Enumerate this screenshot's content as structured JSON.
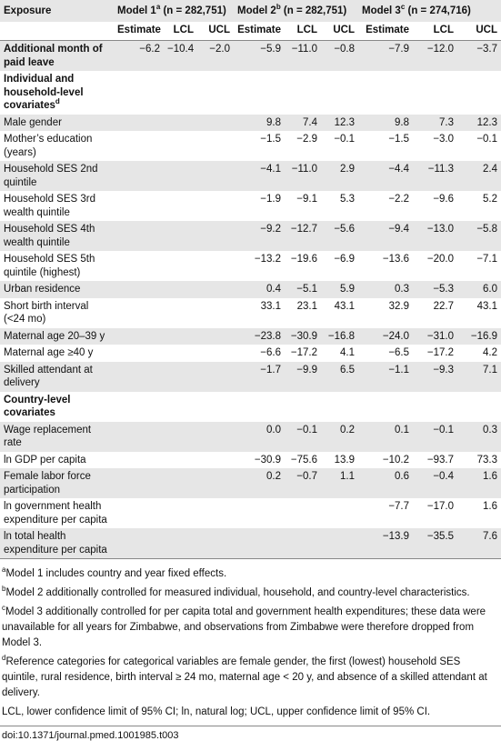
{
  "table": {
    "corner": "Exposure",
    "models": [
      {
        "name": "Model 1",
        "note": "a",
        "n": "(n = 282,751)"
      },
      {
        "name": "Model 2",
        "note": "b",
        "n": "(n = 282,751)"
      },
      {
        "name": "Model 3",
        "note": "c",
        "n": "(n = 274,716)"
      }
    ],
    "subheaders": [
      "Estimate",
      "LCL",
      "UCL"
    ],
    "rows": [
      {
        "label": "Additional month of paid leave",
        "bold": true,
        "values": [
          "−6.2",
          "−10.4",
          "−2.0",
          "−5.9",
          "−11.0",
          "−0.8",
          "−7.9",
          "−12.0",
          "−3.7"
        ]
      },
      {
        "label": "Individual and household-level covariates",
        "note": "d",
        "bold": true
      },
      {
        "label": "Male gender",
        "values": [
          null,
          null,
          null,
          "9.8",
          "7.4",
          "12.3",
          "9.8",
          "7.3",
          "12.3"
        ]
      },
      {
        "label": "Mother’s education (years)",
        "values": [
          null,
          null,
          null,
          "−1.5",
          "−2.9",
          "−0.1",
          "−1.5",
          "−3.0",
          "−0.1"
        ]
      },
      {
        "label": "Household SES 2nd quintile",
        "values": [
          null,
          null,
          null,
          "−4.1",
          "−11.0",
          "2.9",
          "−4.4",
          "−11.3",
          "2.4"
        ]
      },
      {
        "label": "Household SES 3rd wealth quintile",
        "values": [
          null,
          null,
          null,
          "−1.9",
          "−9.1",
          "5.3",
          "−2.2",
          "−9.6",
          "5.2"
        ]
      },
      {
        "label": "Household SES 4th wealth quintile",
        "values": [
          null,
          null,
          null,
          "−9.2",
          "−12.7",
          "−5.6",
          "−9.4",
          "−13.0",
          "−5.8"
        ]
      },
      {
        "label": "Household SES 5th quintile (highest)",
        "values": [
          null,
          null,
          null,
          "−13.2",
          "−19.6",
          "−6.9",
          "−13.6",
          "−20.0",
          "−7.1"
        ]
      },
      {
        "label": "Urban residence",
        "values": [
          null,
          null,
          null,
          "0.4",
          "−5.1",
          "5.9",
          "0.3",
          "−5.3",
          "6.0"
        ]
      },
      {
        "label": "Short birth interval (<24 mo)",
        "values": [
          null,
          null,
          null,
          "33.1",
          "23.1",
          "43.1",
          "32.9",
          "22.7",
          "43.1"
        ]
      },
      {
        "label": "Maternal age 20–39 y",
        "values": [
          null,
          null,
          null,
          "−23.8",
          "−30.9",
          "−16.8",
          "−24.0",
          "−31.0",
          "−16.9"
        ]
      },
      {
        "label": "Maternal age ≥40 y",
        "values": [
          null,
          null,
          null,
          "−6.6",
          "−17.2",
          "4.1",
          "−6.5",
          "−17.2",
          "4.2"
        ]
      },
      {
        "label": "Skilled attendant at delivery",
        "values": [
          null,
          null,
          null,
          "−1.7",
          "−9.9",
          "6.5",
          "−1.1",
          "−9.3",
          "7.1"
        ]
      },
      {
        "label": "Country-level covariates",
        "bold": true
      },
      {
        "label": "Wage replacement rate",
        "values": [
          null,
          null,
          null,
          "0.0",
          "−0.1",
          "0.2",
          "0.1",
          "−0.1",
          "0.3"
        ]
      },
      {
        "label": "ln GDP per capita",
        "values": [
          null,
          null,
          null,
          "−30.9",
          "−75.6",
          "13.9",
          "−10.2",
          "−93.7",
          "73.3"
        ]
      },
      {
        "label": "Female labor force participation",
        "values": [
          null,
          null,
          null,
          "0.2",
          "−0.7",
          "1.1",
          "0.6",
          "−0.4",
          "1.6"
        ]
      },
      {
        "label": "ln government health expenditure per capita",
        "values": [
          null,
          null,
          null,
          null,
          null,
          null,
          "−7.7",
          "−17.0",
          "1.6"
        ]
      },
      {
        "label": "ln total health expenditure per capita",
        "values": [
          null,
          null,
          null,
          null,
          null,
          null,
          "−13.9",
          "−35.5",
          "7.6"
        ]
      }
    ]
  },
  "footnotes": [
    {
      "mark": "a",
      "text": "Model 1 includes country and year fixed effects."
    },
    {
      "mark": "b",
      "text": "Model 2 additionally controlled for measured individual, household, and country-level characteristics."
    },
    {
      "mark": "c",
      "text": "Model 3 additionally controlled for per capita total and government health expenditures; these data were unavailable for all years for Zimbabwe, and observations from Zimbabwe were therefore dropped from Model 3."
    },
    {
      "mark": "d",
      "text": "Reference categories for categorical variables are female gender, the first (lowest) household SES quintile, rural residence, birth interval ≥ 24 mo, maternal age < 20 y, and absence of a skilled attendant at delivery."
    },
    {
      "text": "LCL, lower confidence limit of 95% CI; ln, natural log; UCL, upper confidence limit of 95% CI."
    }
  ],
  "doi": "doi:10.1371/journal.pmed.1001985.t003"
}
